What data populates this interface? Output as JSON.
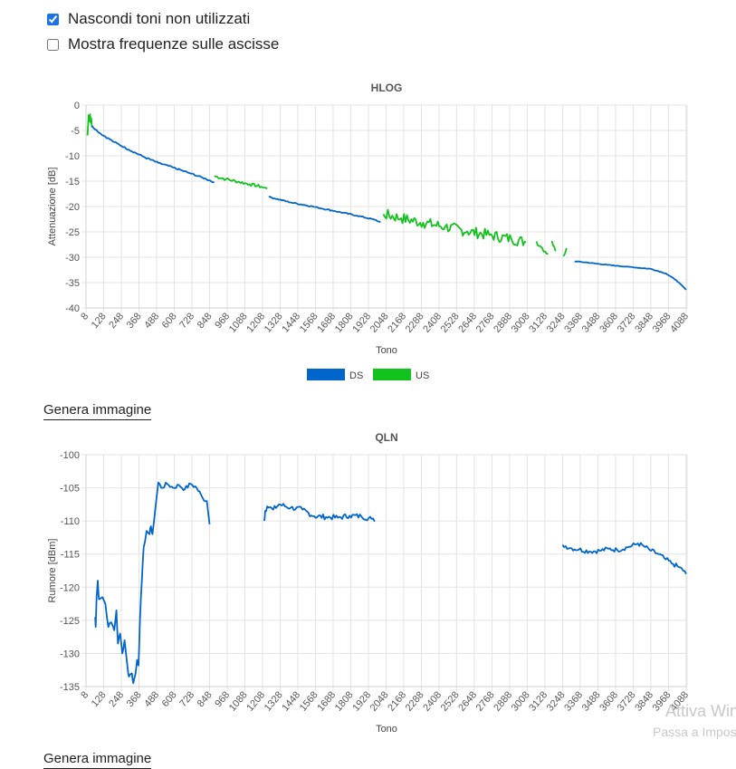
{
  "options": {
    "hide_unused": {
      "label": "Nascondi toni non utilizzati",
      "checked": true
    },
    "show_freq": {
      "label": "Mostra frequenze sulle ascisse",
      "checked": false
    }
  },
  "generate_label": "Genera immagine",
  "watermark": {
    "line1": "Attiva Win",
    "line2": "Passa a Impos"
  },
  "charts": [
    {
      "id": "hlog",
      "type": "line",
      "title": "HLOG",
      "xlabel": "Tono",
      "ylabel": "Attenuazione [dB]",
      "xlim": [
        8,
        4095
      ],
      "ylim": [
        -40,
        0
      ],
      "yticks": [
        0,
        -5,
        -10,
        -15,
        -20,
        -25,
        -30,
        -35,
        -40
      ],
      "xticks": [
        8,
        128,
        248,
        368,
        488,
        608,
        728,
        848,
        968,
        1088,
        1208,
        1328,
        1448,
        1568,
        1688,
        1808,
        1928,
        2048,
        2168,
        2288,
        2408,
        2528,
        2648,
        2768,
        2888,
        3008,
        3128,
        3248,
        3368,
        3488,
        3608,
        3728,
        3848,
        3968,
        4088
      ],
      "legend": [
        {
          "name": "DS",
          "color": "#0066cc"
        },
        {
          "name": "US",
          "color": "#14c21e"
        }
      ],
      "series": [
        {
          "name": "US",
          "color": "#14c21e",
          "segments": [
            {
              "points": [
                [
                  18,
                  -6
                ],
                [
                  22,
                  -4
                ],
                [
                  26,
                  -2
                ],
                [
                  32,
                  -3.2
                ],
                [
                  36,
                  -1.8
                ],
                [
                  40,
                  -3.5
                ],
                [
                  44,
                  -2.6
                ],
                [
                  48,
                  -4.4
                ]
              ]
            },
            {
              "points": [
                [
                  880,
                  -14
                ],
                [
                  960,
                  -14.6
                ],
                [
                  1040,
                  -15.1
                ],
                [
                  1120,
                  -15.6
                ],
                [
                  1200,
                  -16.1
                ],
                [
                  1240,
                  -16.5
                ]
              ],
              "jitter": 0.3
            },
            {
              "points": [
                [
                  2030,
                  -21.5
                ],
                [
                  2150,
                  -22.3
                ],
                [
                  2300,
                  -23.2
                ],
                [
                  2450,
                  -24
                ],
                [
                  2600,
                  -24.9
                ],
                [
                  2750,
                  -25.6
                ],
                [
                  2900,
                  -26.4
                ],
                [
                  3000,
                  -27
                ]
              ],
              "jitter": 1.1
            },
            {
              "points": [
                [
                  3070,
                  -26.9
                ],
                [
                  3110,
                  -28.2
                ],
                [
                  3150,
                  -29.3
                ]
              ],
              "jitter": 0.5
            },
            {
              "points": [
                [
                  3175,
                  -26.8
                ],
                [
                  3200,
                  -28.8
                ]
              ],
              "jitter": 0.4
            },
            {
              "points": [
                [
                  3255,
                  -29.8
                ],
                [
                  3275,
                  -28.2
                ]
              ],
              "jitter": 0.3
            }
          ]
        },
        {
          "name": "DS",
          "color": "#0066cc",
          "segments": [
            {
              "points": [
                [
                  48,
                  -4.1
                ],
                [
                  100,
                  -5.5
                ],
                [
                  200,
                  -7.3
                ],
                [
                  300,
                  -8.8
                ],
                [
                  400,
                  -10.2
                ],
                [
                  500,
                  -11.4
                ],
                [
                  600,
                  -12.3
                ],
                [
                  700,
                  -13.3
                ],
                [
                  800,
                  -14.3
                ],
                [
                  880,
                  -15.2
                ]
              ],
              "jitter": 0.15
            },
            {
              "points": [
                [
                  1250,
                  -18.1
                ],
                [
                  1400,
                  -19.2
                ],
                [
                  1550,
                  -20
                ],
                [
                  1700,
                  -20.9
                ],
                [
                  1850,
                  -21.8
                ],
                [
                  1970,
                  -22.6
                ],
                [
                  2010,
                  -23.1
                ]
              ],
              "jitter": 0.12
            },
            {
              "points": [
                [
                  3330,
                  -30.8
                ],
                [
                  3400,
                  -31
                ],
                [
                  3550,
                  -31.5
                ],
                [
                  3700,
                  -31.9
                ],
                [
                  3850,
                  -32.3
                ],
                [
                  3950,
                  -33.2
                ],
                [
                  4020,
                  -34.5
                ],
                [
                  4088,
                  -36.4
                ]
              ],
              "jitter": 0.06
            }
          ]
        }
      ]
    },
    {
      "id": "qln",
      "type": "line",
      "title": "QLN",
      "xlabel": "Tono",
      "ylabel": "Rumore [dBm]",
      "xlim": [
        8,
        4095
      ],
      "ylim": [
        -135,
        -100
      ],
      "yticks": [
        -100,
        -105,
        -110,
        -115,
        -120,
        -125,
        -130,
        -135
      ],
      "xticks": [
        8,
        128,
        248,
        368,
        488,
        608,
        728,
        848,
        968,
        1088,
        1208,
        1328,
        1448,
        1568,
        1688,
        1808,
        1928,
        2048,
        2168,
        2288,
        2408,
        2528,
        2648,
        2768,
        2888,
        3008,
        3128,
        3248,
        3368,
        3488,
        3608,
        3728,
        3848,
        3968,
        4088
      ],
      "series": [
        {
          "name": "DS",
          "color": "#0066cc",
          "segments": [
            {
              "points": [
                [
                  70,
                  -124.5
                ],
                [
                  74,
                  -126
                ],
                [
                  80,
                  -121.5
                ],
                [
                  88,
                  -119
                ],
                [
                  96,
                  -121.8
                ],
                [
                  120,
                  -121.5
                ],
                [
                  140,
                  -122.5
                ],
                [
                  160,
                  -126
                ],
                [
                  180,
                  -125.3
                ],
                [
                  200,
                  -126.5
                ],
                [
                  215,
                  -123.5
                ],
                [
                  225,
                  -128.5
                ],
                [
                  240,
                  -127
                ],
                [
                  255,
                  -130
                ],
                [
                  270,
                  -128
                ],
                [
                  290,
                  -132
                ],
                [
                  300,
                  -133.5
                ],
                [
                  320,
                  -133
                ],
                [
                  330,
                  -134.5
                ],
                [
                  345,
                  -133
                ],
                [
                  355,
                  -131
                ],
                [
                  365,
                  -131.8
                ],
                [
                  375,
                  -125
                ],
                [
                  390,
                  -118
                ],
                [
                  400,
                  -114
                ],
                [
                  420,
                  -111.5
                ],
                [
                  440,
                  -112
                ],
                [
                  450,
                  -110.8
                ],
                [
                  460,
                  -112
                ],
                [
                  480,
                  -108
                ],
                [
                  500,
                  -104.2
                ],
                [
                  520,
                  -105
                ],
                [
                  560,
                  -104.4
                ],
                [
                  600,
                  -105
                ],
                [
                  640,
                  -104.6
                ],
                [
                  680,
                  -105.2
                ],
                [
                  720,
                  -104.4
                ],
                [
                  760,
                  -105
                ],
                [
                  800,
                  -106.5
                ],
                [
                  830,
                  -107
                ],
                [
                  848,
                  -110.5
                ]
              ],
              "jitter": 0.35
            },
            {
              "points": [
                [
                  1220,
                  -110
                ],
                [
                  1226,
                  -108.5
                ],
                [
                  1240,
                  -107.8
                ],
                [
                  1280,
                  -108.3
                ],
                [
                  1320,
                  -107.5
                ],
                [
                  1400,
                  -108
                ],
                [
                  1480,
                  -108.3
                ],
                [
                  1560,
                  -109.3
                ],
                [
                  1640,
                  -109.4
                ],
                [
                  1720,
                  -109.5
                ],
                [
                  1800,
                  -109.2
                ],
                [
                  1880,
                  -109.3
                ],
                [
                  1950,
                  -109.7
                ],
                [
                  1970,
                  -110.1
                ]
              ],
              "jitter": 0.4
            },
            {
              "points": [
                [
                  3248,
                  -113.6
                ],
                [
                  3300,
                  -114.1
                ],
                [
                  3360,
                  -114.3
                ],
                [
                  3430,
                  -114.6
                ],
                [
                  3500,
                  -114.5
                ],
                [
                  3560,
                  -114.2
                ],
                [
                  3620,
                  -114.4
                ],
                [
                  3700,
                  -113.9
                ],
                [
                  3760,
                  -113.4
                ],
                [
                  3800,
                  -113.8
                ],
                [
                  3850,
                  -114.5
                ],
                [
                  3900,
                  -115
                ],
                [
                  3950,
                  -115.8
                ],
                [
                  4000,
                  -116.5
                ],
                [
                  4040,
                  -117
                ],
                [
                  4060,
                  -117.2
                ],
                [
                  4088,
                  -118
                ]
              ],
              "jitter": 0.35
            }
          ]
        }
      ]
    }
  ]
}
